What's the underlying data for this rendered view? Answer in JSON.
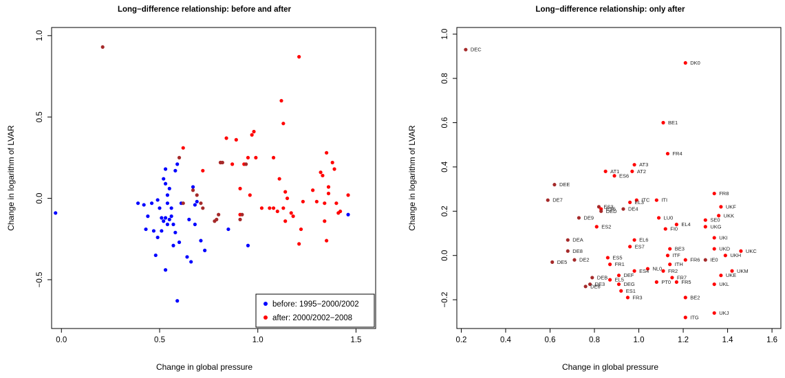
{
  "colors": {
    "before": "#0000ff",
    "after": "#ff0000",
    "both": "#a52a2a",
    "axis": "#000000"
  },
  "chart_data": [
    {
      "type": "scatter",
      "title": "Long−difference relationship: before and after",
      "xlabel": "Change in global pressure",
      "ylabel": "Change in logarithm of LVAR",
      "xlim": [
        -0.05,
        1.6
      ],
      "ylim": [
        -0.8,
        1.05
      ],
      "xticks": [
        0.0,
        0.5,
        1.0,
        1.5
      ],
      "xticklabels": [
        "0.0",
        "0.5",
        "1.0",
        "1.5"
      ],
      "yticks": [
        -0.5,
        0.0,
        0.5,
        1.0
      ],
      "yticklabels": [
        "−0.5",
        "0.0",
        "0.5",
        "1.0"
      ],
      "legend": {
        "position": "bottom-right",
        "entries": [
          {
            "label": "before: 1995−2000/2002",
            "color": "#0000ff"
          },
          {
            "label": "after: 2000/2002−2008",
            "color": "#ff0000"
          }
        ]
      },
      "series": [
        {
          "name": "before: 1995−2000/2002",
          "color": "#0000ff",
          "points": [
            [
              -0.03,
              -0.09
            ],
            [
              0.39,
              -0.03
            ],
            [
              0.42,
              -0.04
            ],
            [
              0.43,
              -0.19
            ],
            [
              0.44,
              -0.11
            ],
            [
              0.46,
              -0.03
            ],
            [
              0.47,
              -0.2
            ],
            [
              0.48,
              -0.35
            ],
            [
              0.49,
              -0.24
            ],
            [
              0.49,
              -0.01
            ],
            [
              0.5,
              -0.06
            ],
            [
              0.51,
              -0.12
            ],
            [
              0.51,
              -0.2
            ],
            [
              0.52,
              0.12
            ],
            [
              0.52,
              -0.14
            ],
            [
              0.53,
              0.18
            ],
            [
              0.53,
              -0.44
            ],
            [
              0.53,
              -0.12
            ],
            [
              0.53,
              0.09
            ],
            [
              0.54,
              -0.03
            ],
            [
              0.54,
              -0.16
            ],
            [
              0.54,
              0.02
            ],
            [
              0.55,
              0.06
            ],
            [
              0.55,
              -0.13
            ],
            [
              0.56,
              -0.06
            ],
            [
              0.56,
              -0.11
            ],
            [
              0.57,
              -0.16
            ],
            [
              0.57,
              -0.29
            ],
            [
              0.58,
              0.17
            ],
            [
              0.58,
              -0.21
            ],
            [
              0.59,
              -0.63
            ],
            [
              0.59,
              0.21
            ],
            [
              0.6,
              -0.27
            ],
            [
              0.61,
              -0.03
            ],
            [
              0.64,
              -0.36
            ],
            [
              0.65,
              -0.13
            ],
            [
              0.66,
              -0.39
            ],
            [
              0.67,
              0.07
            ],
            [
              0.68,
              -0.04
            ],
            [
              0.68,
              -0.16
            ],
            [
              0.69,
              -0.02
            ],
            [
              0.71,
              -0.26
            ],
            [
              0.73,
              -0.32
            ],
            [
              0.85,
              -0.19
            ],
            [
              0.95,
              -0.29
            ],
            [
              1.46,
              -0.1
            ]
          ]
        },
        {
          "name": "after: 2000/2002−2008",
          "color": "#ff0000",
          "points": [
            [
              0.62,
              0.31
            ],
            [
              0.72,
              0.17
            ],
            [
              0.81,
              0.22
            ],
            [
              0.84,
              0.37
            ],
            [
              0.87,
              0.21
            ],
            [
              0.89,
              0.36
            ],
            [
              0.91,
              0.06
            ],
            [
              0.91,
              -0.1
            ],
            [
              0.93,
              0.21
            ],
            [
              0.95,
              0.25
            ],
            [
              0.96,
              0.02
            ],
            [
              0.97,
              0.39
            ],
            [
              0.98,
              0.41
            ],
            [
              0.99,
              0.25
            ],
            [
              1.02,
              -0.06
            ],
            [
              1.06,
              -0.06
            ],
            [
              1.08,
              0.25
            ],
            [
              1.08,
              -0.06
            ],
            [
              1.1,
              -0.08
            ],
            [
              1.11,
              0.12
            ],
            [
              1.12,
              0.6
            ],
            [
              1.13,
              -0.06
            ],
            [
              1.13,
              0.46
            ],
            [
              1.14,
              0.04
            ],
            [
              1.14,
              -0.14
            ],
            [
              1.15,
              0.0
            ],
            [
              1.17,
              -0.09
            ],
            [
              1.18,
              -0.11
            ],
            [
              1.21,
              -0.28
            ],
            [
              1.21,
              0.87
            ],
            [
              1.22,
              -0.19
            ],
            [
              1.23,
              -0.02
            ],
            [
              1.32,
              0.16
            ],
            [
              1.33,
              0.14
            ],
            [
              1.34,
              -0.03
            ],
            [
              1.34,
              -0.14
            ],
            [
              1.35,
              -0.26
            ],
            [
              1.35,
              0.28
            ],
            [
              1.36,
              0.07
            ],
            [
              1.36,
              0.03
            ],
            [
              1.38,
              0.22
            ],
            [
              1.39,
              0.18
            ],
            [
              1.4,
              -0.03
            ],
            [
              1.41,
              -0.09
            ],
            [
              1.42,
              -0.08
            ],
            [
              1.46,
              0.02
            ],
            [
              1.28,
              0.05
            ],
            [
              1.3,
              -0.02
            ]
          ]
        },
        {
          "name": "",
          "color": "#a52a2a",
          "points": [
            [
              0.21,
              0.93
            ],
            [
              0.6,
              0.25
            ],
            [
              0.62,
              -0.03
            ],
            [
              0.67,
              0.05
            ],
            [
              0.69,
              0.02
            ],
            [
              0.71,
              -0.03
            ],
            [
              0.78,
              -0.14
            ],
            [
              0.79,
              -0.13
            ],
            [
              0.8,
              -0.1
            ],
            [
              0.81,
              0.22
            ],
            [
              0.82,
              0.22
            ],
            [
              0.91,
              -0.13
            ],
            [
              0.92,
              -0.1
            ],
            [
              0.94,
              0.21
            ],
            [
              0.72,
              -0.06
            ]
          ]
        }
      ]
    },
    {
      "type": "scatter",
      "title": "Long−difference relationship: only after",
      "xlabel": "Change in global pressure",
      "ylabel": "Change in logarithm of LVAR",
      "xlim": [
        0.18,
        1.64
      ],
      "ylim": [
        -0.33,
        1.03
      ],
      "xticks": [
        0.2,
        0.4,
        0.6,
        0.8,
        1.0,
        1.2,
        1.4,
        1.6
      ],
      "xticklabels": [
        "0.2",
        "0.4",
        "0.6",
        "0.8",
        "1.0",
        "1.2",
        "1.4",
        "1.6"
      ],
      "yticks": [
        -0.2,
        0.0,
        0.2,
        0.4,
        0.6,
        0.8,
        1.0
      ],
      "yticklabels": [
        "−0.2",
        "0.0",
        "0.2",
        "0.4",
        "0.6",
        "0.8",
        "1.0"
      ],
      "points": [
        {
          "label": "DEC",
          "x": 0.22,
          "y": 0.93,
          "color": "#a52a2a"
        },
        {
          "label": "DK0",
          "x": 1.21,
          "y": 0.87,
          "color": "#ff0000"
        },
        {
          "label": "BE1",
          "x": 1.11,
          "y": 0.6,
          "color": "#ff0000"
        },
        {
          "label": "FR4",
          "x": 1.13,
          "y": 0.46,
          "color": "#ff0000"
        },
        {
          "label": "AT3",
          "x": 0.98,
          "y": 0.41,
          "color": "#ff0000"
        },
        {
          "label": "AT1",
          "x": 0.85,
          "y": 0.38,
          "color": "#ff0000"
        },
        {
          "label": "AT2",
          "x": 0.97,
          "y": 0.38,
          "color": "#ff0000"
        },
        {
          "label": "ES6",
          "x": 0.89,
          "y": 0.36,
          "color": "#ff0000"
        },
        {
          "label": "DEE",
          "x": 0.62,
          "y": 0.32,
          "color": "#a52a2a"
        },
        {
          "label": "FR8",
          "x": 1.34,
          "y": 0.28,
          "color": "#ff0000"
        },
        {
          "label": "DE7",
          "x": 0.59,
          "y": 0.25,
          "color": "#a52a2a"
        },
        {
          "label": "ITC",
          "x": 0.99,
          "y": 0.25,
          "color": "#ff0000"
        },
        {
          "label": "ITI",
          "x": 1.08,
          "y": 0.25,
          "color": "#ff0000"
        },
        {
          "label": "EL3",
          "x": 0.96,
          "y": 0.24,
          "color": "#ff0000"
        },
        {
          "label": "UKF",
          "x": 1.37,
          "y": 0.22,
          "color": "#ff0000"
        },
        {
          "label": "ES3",
          "x": 0.82,
          "y": 0.22,
          "color": "#a52a2a"
        },
        {
          "label": "ES6",
          "x": 0.83,
          "y": 0.21,
          "color": "#ff0000"
        },
        {
          "label": "DED",
          "x": 0.83,
          "y": 0.2,
          "color": "#a52a2a"
        },
        {
          "label": "DE4",
          "x": 0.93,
          "y": 0.21,
          "color": "#a52a2a"
        },
        {
          "label": "UKK",
          "x": 1.36,
          "y": 0.18,
          "color": "#ff0000"
        },
        {
          "label": "DE9",
          "x": 0.73,
          "y": 0.17,
          "color": "#a52a2a"
        },
        {
          "label": "LU0",
          "x": 1.09,
          "y": 0.17,
          "color": "#ff0000"
        },
        {
          "label": "SE0",
          "x": 1.3,
          "y": 0.16,
          "color": "#ff0000"
        },
        {
          "label": "EL4",
          "x": 1.17,
          "y": 0.14,
          "color": "#ff0000"
        },
        {
          "label": "UKG",
          "x": 1.3,
          "y": 0.13,
          "color": "#ff0000"
        },
        {
          "label": "ES2",
          "x": 0.81,
          "y": 0.13,
          "color": "#ff0000"
        },
        {
          "label": "FI0",
          "x": 1.12,
          "y": 0.12,
          "color": "#ff0000"
        },
        {
          "label": "UKI",
          "x": 1.34,
          "y": 0.08,
          "color": "#ff0000"
        },
        {
          "label": "EL6",
          "x": 0.98,
          "y": 0.07,
          "color": "#ff0000"
        },
        {
          "label": "DEA",
          "x": 0.68,
          "y": 0.07,
          "color": "#a52a2a"
        },
        {
          "label": "ES7",
          "x": 0.96,
          "y": 0.04,
          "color": "#ff0000"
        },
        {
          "label": "BE3",
          "x": 1.14,
          "y": 0.03,
          "color": "#ff0000"
        },
        {
          "label": "UKD",
          "x": 1.34,
          "y": 0.03,
          "color": "#ff0000"
        },
        {
          "label": "UKC",
          "x": 1.46,
          "y": 0.02,
          "color": "#ff0000"
        },
        {
          "label": "DE8",
          "x": 0.68,
          "y": 0.02,
          "color": "#a52a2a"
        },
        {
          "label": "ITF",
          "x": 1.13,
          "y": 0.0,
          "color": "#ff0000"
        },
        {
          "label": "UKH",
          "x": 1.39,
          "y": 0.0,
          "color": "#ff0000"
        },
        {
          "label": "DE2",
          "x": 0.71,
          "y": -0.02,
          "color": "#a52a2a"
        },
        {
          "label": "DE5",
          "x": 0.61,
          "y": -0.03,
          "color": "#a52a2a"
        },
        {
          "label": "ES5",
          "x": 0.86,
          "y": -0.01,
          "color": "#ff0000"
        },
        {
          "label": "FR6",
          "x": 1.21,
          "y": -0.02,
          "color": "#ff0000"
        },
        {
          "label": "IE0",
          "x": 1.3,
          "y": -0.02,
          "color": "#a52a2a"
        },
        {
          "label": "FR1",
          "x": 0.87,
          "y": -0.04,
          "color": "#ff0000"
        },
        {
          "label": "ITH",
          "x": 1.14,
          "y": -0.04,
          "color": "#ff0000"
        },
        {
          "label": "NL0",
          "x": 1.04,
          "y": -0.06,
          "color": "#ff0000"
        },
        {
          "label": "FR2",
          "x": 1.11,
          "y": -0.07,
          "color": "#ff0000"
        },
        {
          "label": "ES4",
          "x": 0.98,
          "y": -0.07,
          "color": "#ff0000"
        },
        {
          "label": "UKM",
          "x": 1.42,
          "y": -0.07,
          "color": "#ff0000"
        },
        {
          "label": "DEF",
          "x": 0.91,
          "y": -0.09,
          "color": "#ff0000"
        },
        {
          "label": "UKE",
          "x": 1.37,
          "y": -0.09,
          "color": "#ff0000"
        },
        {
          "label": "DEB",
          "x": 0.79,
          "y": -0.1,
          "color": "#a52a2a"
        },
        {
          "label": "EL5",
          "x": 0.87,
          "y": -0.11,
          "color": "#ff0000"
        },
        {
          "label": "FR7",
          "x": 1.15,
          "y": -0.1,
          "color": "#ff0000"
        },
        {
          "label": "PT0",
          "x": 1.08,
          "y": -0.12,
          "color": "#ff0000"
        },
        {
          "label": "FR5",
          "x": 1.17,
          "y": -0.12,
          "color": "#ff0000"
        },
        {
          "label": "DE3",
          "x": 0.78,
          "y": -0.13,
          "color": "#a52a2a"
        },
        {
          "label": "DEG",
          "x": 0.91,
          "y": -0.13,
          "color": "#ff0000"
        },
        {
          "label": "UKL",
          "x": 1.34,
          "y": -0.13,
          "color": "#ff0000"
        },
        {
          "label": "DE6",
          "x": 0.76,
          "y": -0.14,
          "color": "#a52a2a"
        },
        {
          "label": "ES1",
          "x": 0.92,
          "y": -0.16,
          "color": "#ff0000"
        },
        {
          "label": "FR3",
          "x": 0.95,
          "y": -0.19,
          "color": "#ff0000"
        },
        {
          "label": "BE2",
          "x": 1.21,
          "y": -0.19,
          "color": "#ff0000"
        },
        {
          "label": "UKJ",
          "x": 1.34,
          "y": -0.26,
          "color": "#ff0000"
        },
        {
          "label": "ITG",
          "x": 1.21,
          "y": -0.28,
          "color": "#ff0000"
        }
      ]
    }
  ]
}
